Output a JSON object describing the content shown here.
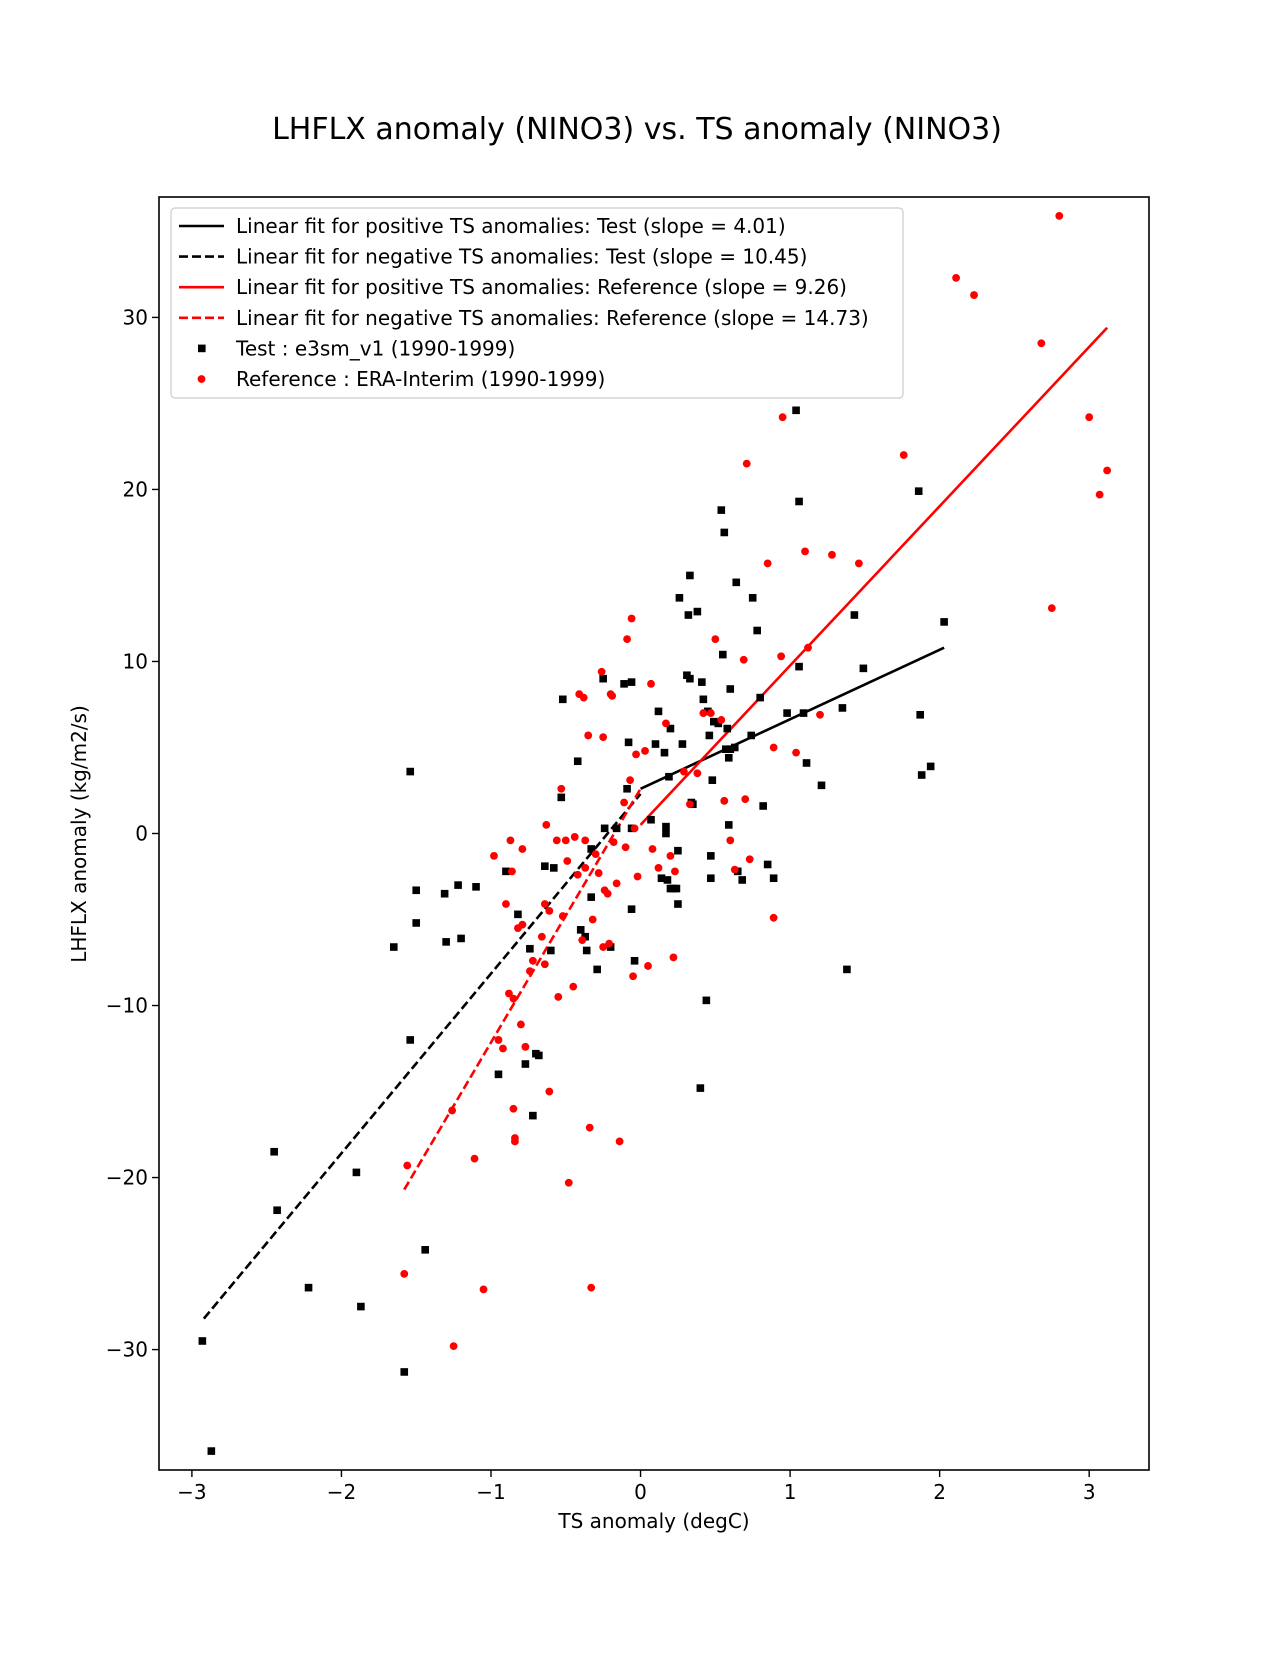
{
  "chart_data": {
    "type": "scatter",
    "title": "LHFLX anomaly (NINO3) vs. TS anomaly (NINO3)",
    "xlabel": "TS anomaly (degC)",
    "ylabel": "LHFLX anomaly (kg/m2/s)",
    "xlim": [
      -3.22,
      3.4
    ],
    "ylim": [
      -37.0,
      37.0
    ],
    "xticks": [
      -3,
      -2,
      -1,
      0,
      1,
      2,
      3
    ],
    "yticks": [
      -30,
      -20,
      -10,
      0,
      10,
      20,
      30
    ],
    "xtick_labels": [
      "−3",
      "−2",
      "−1",
      "0",
      "1",
      "2",
      "3"
    ],
    "ytick_labels": [
      "−30",
      "−20",
      "−10",
      "0",
      "10",
      "20",
      "30"
    ],
    "legend_position": "upper-left",
    "fits": [
      {
        "label": "Linear fit for positive TS anomalies: Test (slope = 4.01)",
        "color": "#000000",
        "dashed": false,
        "x": [
          0.0,
          2.03
        ],
        "y": [
          2.6,
          10.8
        ]
      },
      {
        "label": "Linear fit for negative TS anomalies: Test (slope = 10.45)",
        "color": "#000000",
        "dashed": true,
        "x": [
          -2.92,
          0.0
        ],
        "y": [
          -28.2,
          2.3
        ]
      },
      {
        "label": "Linear fit for positive TS anomalies: Reference (slope = 9.26)",
        "color": "#ff0000",
        "dashed": false,
        "x": [
          0.0,
          3.12
        ],
        "y": [
          0.5,
          29.4
        ]
      },
      {
        "label": "Linear fit for negative TS anomalies: Reference (slope = 14.73)",
        "color": "#ff0000",
        "dashed": true,
        "x": [
          -1.58,
          0.0
        ],
        "y": [
          -20.7,
          2.6
        ]
      }
    ],
    "series": [
      {
        "name": "Test : e3sm_v1 (1990-1999)",
        "marker": "square",
        "color": "#000000",
        "points": [
          [
            -2.93,
            -29.5
          ],
          [
            -2.87,
            -35.9
          ],
          [
            -2.45,
            -18.5
          ],
          [
            -2.43,
            -21.9
          ],
          [
            -2.22,
            -26.4
          ],
          [
            -1.9,
            -19.7
          ],
          [
            -1.87,
            -27.5
          ],
          [
            -1.58,
            -31.3
          ],
          [
            -1.54,
            3.6
          ],
          [
            -1.54,
            -12.0
          ],
          [
            -1.5,
            -3.3
          ],
          [
            -1.5,
            -5.2
          ],
          [
            -1.44,
            -24.2
          ],
          [
            -1.31,
            -3.5
          ],
          [
            -1.3,
            -6.3
          ],
          [
            -1.22,
            -3.0
          ],
          [
            -1.2,
            -6.1
          ],
          [
            -1.1,
            -3.1
          ],
          [
            -1.65,
            -6.6
          ],
          [
            -0.95,
            -14.0
          ],
          [
            -0.9,
            -2.2
          ],
          [
            -0.82,
            -4.7
          ],
          [
            -0.77,
            -13.4
          ],
          [
            -0.74,
            -6.7
          ],
          [
            -0.72,
            -16.4
          ],
          [
            -0.7,
            -12.8
          ],
          [
            -0.68,
            -12.9
          ],
          [
            -0.64,
            -1.9
          ],
          [
            -0.6,
            -6.8
          ],
          [
            -0.58,
            -2.0
          ],
          [
            -0.53,
            2.1
          ],
          [
            -0.52,
            7.8
          ],
          [
            -0.42,
            4.2
          ],
          [
            -0.4,
            -5.6
          ],
          [
            -0.37,
            -6.0
          ],
          [
            -0.36,
            -6.8
          ],
          [
            -0.33,
            -3.7
          ],
          [
            -0.33,
            -0.9
          ],
          [
            -0.29,
            -7.9
          ],
          [
            -0.25,
            9.0
          ],
          [
            -0.24,
            0.3
          ],
          [
            -0.2,
            -6.6
          ],
          [
            -0.16,
            0.3
          ],
          [
            -0.11,
            8.7
          ],
          [
            -0.09,
            2.6
          ],
          [
            -0.08,
            5.3
          ],
          [
            -0.06,
            8.8
          ],
          [
            -0.06,
            -4.4
          ],
          [
            -0.04,
            -7.4
          ],
          [
            -0.06,
            0.3
          ],
          [
            0.07,
            0.8
          ],
          [
            0.1,
            5.2
          ],
          [
            0.12,
            7.1
          ],
          [
            0.14,
            -2.6
          ],
          [
            0.16,
            4.7
          ],
          [
            0.17,
            0.4
          ],
          [
            0.17,
            0.0
          ],
          [
            0.18,
            -2.7
          ],
          [
            0.19,
            3.3
          ],
          [
            0.2,
            6.1
          ],
          [
            0.2,
            -3.2
          ],
          [
            0.22,
            -3.2
          ],
          [
            0.24,
            -3.2
          ],
          [
            0.25,
            -4.1
          ],
          [
            0.25,
            -1.0
          ],
          [
            0.26,
            13.7
          ],
          [
            0.28,
            5.2
          ],
          [
            0.31,
            9.2
          ],
          [
            0.32,
            12.7
          ],
          [
            0.33,
            15.0
          ],
          [
            0.33,
            9.0
          ],
          [
            0.34,
            1.8
          ],
          [
            0.35,
            1.7
          ],
          [
            0.38,
            12.9
          ],
          [
            0.41,
            8.8
          ],
          [
            0.42,
            7.8
          ],
          [
            0.44,
            -9.7
          ],
          [
            0.45,
            7.1
          ],
          [
            0.46,
            5.7
          ],
          [
            0.47,
            -1.3
          ],
          [
            0.47,
            -2.6
          ],
          [
            0.48,
            3.1
          ],
          [
            0.49,
            6.5
          ],
          [
            0.52,
            6.4
          ],
          [
            0.54,
            18.8
          ],
          [
            0.55,
            10.4
          ],
          [
            0.56,
            17.5
          ],
          [
            0.57,
            4.9
          ],
          [
            0.58,
            6.1
          ],
          [
            0.59,
            4.4
          ],
          [
            0.59,
            0.5
          ],
          [
            0.6,
            4.9
          ],
          [
            0.6,
            8.4
          ],
          [
            0.63,
            5.0
          ],
          [
            0.64,
            14.6
          ],
          [
            0.65,
            -2.2
          ],
          [
            0.68,
            -2.7
          ],
          [
            0.4,
            -14.8
          ],
          [
            0.74,
            5.7
          ],
          [
            0.75,
            13.7
          ],
          [
            0.78,
            11.8
          ],
          [
            0.8,
            7.9
          ],
          [
            0.82,
            1.6
          ],
          [
            0.85,
            -1.8
          ],
          [
            0.89,
            -2.6
          ],
          [
            0.98,
            7.0
          ],
          [
            1.04,
            24.6
          ],
          [
            1.06,
            19.3
          ],
          [
            1.06,
            9.7
          ],
          [
            1.09,
            7.0
          ],
          [
            1.11,
            4.1
          ],
          [
            1.21,
            2.8
          ],
          [
            1.35,
            7.3
          ],
          [
            1.38,
            -7.9
          ],
          [
            1.43,
            12.7
          ],
          [
            1.49,
            9.6
          ],
          [
            1.86,
            19.9
          ],
          [
            1.87,
            6.9
          ],
          [
            1.88,
            3.4
          ],
          [
            1.94,
            3.9
          ],
          [
            2.03,
            12.3
          ]
        ]
      },
      {
        "name": "Reference : ERA-Interim (1990-1999)",
        "marker": "circle",
        "color": "#ff0000",
        "points": [
          [
            -1.58,
            -25.6
          ],
          [
            -1.56,
            -19.3
          ],
          [
            -1.26,
            -16.1
          ],
          [
            -1.25,
            -29.8
          ],
          [
            -1.11,
            -18.9
          ],
          [
            -1.05,
            -26.5
          ],
          [
            -0.98,
            -1.3
          ],
          [
            -0.95,
            -12.0
          ],
          [
            -0.92,
            -12.5
          ],
          [
            -0.9,
            -4.1
          ],
          [
            -0.88,
            -9.3
          ],
          [
            -0.87,
            -0.4
          ],
          [
            -0.86,
            -2.2
          ],
          [
            -0.85,
            -9.6
          ],
          [
            -0.85,
            -16.0
          ],
          [
            -0.84,
            -17.7
          ],
          [
            -0.84,
            -17.9
          ],
          [
            -0.82,
            -5.5
          ],
          [
            -0.8,
            -11.1
          ],
          [
            -0.79,
            -0.9
          ],
          [
            -0.79,
            -5.3
          ],
          [
            -0.77,
            -12.4
          ],
          [
            -0.74,
            -8.0
          ],
          [
            -0.72,
            -7.4
          ],
          [
            -0.66,
            -6.0
          ],
          [
            -0.64,
            -7.6
          ],
          [
            -0.64,
            -4.1
          ],
          [
            -0.63,
            0.5
          ],
          [
            -0.61,
            -4.5
          ],
          [
            -0.61,
            -15.0
          ],
          [
            -0.56,
            -0.4
          ],
          [
            -0.55,
            -9.5
          ],
          [
            -0.53,
            2.6
          ],
          [
            -0.52,
            -4.8
          ],
          [
            -0.5,
            -0.4
          ],
          [
            -0.49,
            -1.6
          ],
          [
            -0.48,
            -20.3
          ],
          [
            -0.45,
            -8.9
          ],
          [
            -0.44,
            -0.2
          ],
          [
            -0.42,
            -2.4
          ],
          [
            -0.41,
            8.1
          ],
          [
            -0.39,
            -6.2
          ],
          [
            -0.38,
            7.9
          ],
          [
            -0.37,
            -0.4
          ],
          [
            -0.37,
            -2.0
          ],
          [
            -0.35,
            5.7
          ],
          [
            -0.34,
            -17.1
          ],
          [
            -0.33,
            -26.4
          ],
          [
            -0.32,
            -5.0
          ],
          [
            -0.3,
            -1.2
          ],
          [
            -0.28,
            -2.3
          ],
          [
            -0.26,
            9.4
          ],
          [
            -0.25,
            5.6
          ],
          [
            -0.25,
            -6.6
          ],
          [
            -0.24,
            -3.3
          ],
          [
            -0.22,
            -3.5
          ],
          [
            -0.21,
            -6.4
          ],
          [
            -0.2,
            8.1
          ],
          [
            -0.19,
            8.0
          ],
          [
            -0.18,
            -0.5
          ],
          [
            -0.16,
            -2.9
          ],
          [
            -0.14,
            -17.9
          ],
          [
            -0.11,
            1.8
          ],
          [
            -0.1,
            -0.8
          ],
          [
            -0.09,
            11.3
          ],
          [
            -0.07,
            3.1
          ],
          [
            -0.06,
            12.5
          ],
          [
            -0.05,
            -8.3
          ],
          [
            -0.04,
            0.3
          ],
          [
            -0.03,
            4.6
          ],
          [
            -0.02,
            -2.5
          ],
          [
            0.03,
            4.8
          ],
          [
            0.05,
            -7.7
          ],
          [
            0.07,
            8.7
          ],
          [
            0.08,
            -0.9
          ],
          [
            0.12,
            -2.0
          ],
          [
            0.17,
            6.4
          ],
          [
            0.2,
            -1.3
          ],
          [
            0.22,
            -7.2
          ],
          [
            0.23,
            -2.2
          ],
          [
            0.29,
            3.6
          ],
          [
            0.33,
            1.7
          ],
          [
            0.38,
            3.5
          ],
          [
            0.42,
            7.0
          ],
          [
            0.47,
            7.0
          ],
          [
            0.5,
            11.3
          ],
          [
            0.54,
            6.6
          ],
          [
            0.56,
            1.9
          ],
          [
            0.6,
            -0.4
          ],
          [
            0.63,
            -2.1
          ],
          [
            0.69,
            10.1
          ],
          [
            0.7,
            2.0
          ],
          [
            0.71,
            21.5
          ],
          [
            0.73,
            -1.5
          ],
          [
            0.85,
            15.7
          ],
          [
            0.89,
            5.0
          ],
          [
            0.89,
            -4.9
          ],
          [
            0.94,
            10.3
          ],
          [
            0.95,
            24.2
          ],
          [
            1.04,
            4.7
          ],
          [
            1.1,
            16.4
          ],
          [
            1.12,
            10.8
          ],
          [
            1.2,
            6.9
          ],
          [
            1.28,
            16.2
          ],
          [
            1.46,
            15.7
          ],
          [
            1.76,
            22.0
          ],
          [
            2.11,
            32.3
          ],
          [
            2.23,
            31.3
          ],
          [
            2.68,
            28.5
          ],
          [
            2.75,
            13.1
          ],
          [
            2.8,
            35.9
          ],
          [
            3.0,
            24.2
          ],
          [
            3.07,
            19.7
          ],
          [
            3.12,
            21.1
          ]
        ]
      }
    ]
  }
}
